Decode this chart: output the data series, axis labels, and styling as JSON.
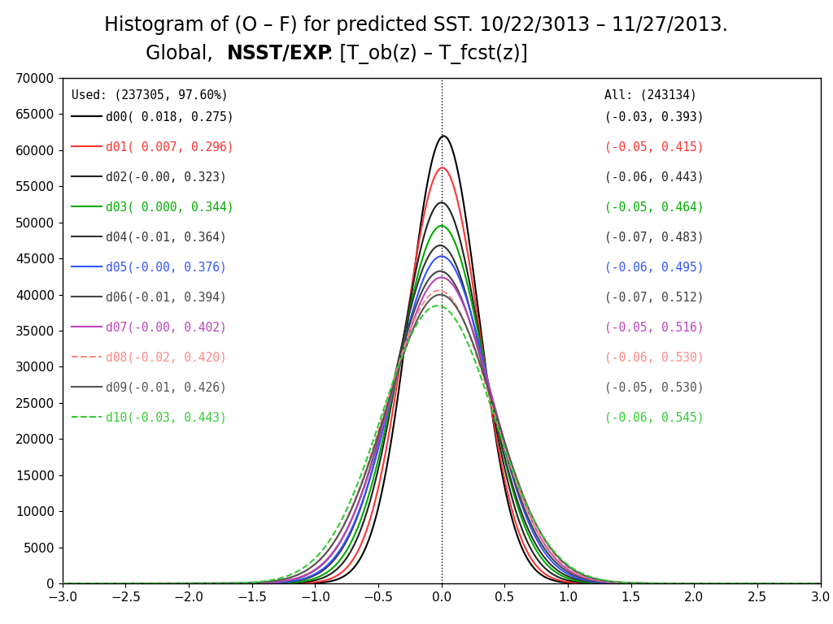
{
  "title_line1": "Histogram of (O – F) for predicted SST. 10/22/3013 – 11/27/2013.",
  "used_label": "Used: (237305, 97.60%)",
  "all_label": "All: (243134)",
  "xlim": [
    -3.0,
    3.0
  ],
  "ylim": [
    0,
    70000
  ],
  "yticks": [
    0,
    5000,
    10000,
    15000,
    20000,
    25000,
    30000,
    35000,
    40000,
    45000,
    50000,
    55000,
    60000,
    65000,
    70000
  ],
  "xticks": [
    -3,
    -2.5,
    -2,
    -1.5,
    -1,
    -0.5,
    0,
    0.5,
    1,
    1.5,
    2,
    2.5,
    3
  ],
  "curves": [
    {
      "name": "d00",
      "mean": 0.018,
      "std": 0.275,
      "color": "#000000",
      "linestyle": "-",
      "linewidth": 1.5,
      "all_mean": -0.03,
      "all_std": 0.393
    },
    {
      "name": "d01",
      "mean": 0.007,
      "std": 0.296,
      "color": "#ff3333",
      "linestyle": "-",
      "linewidth": 1.5,
      "all_mean": -0.05,
      "all_std": 0.415
    },
    {
      "name": "d02",
      "mean": -0.0,
      "std": 0.323,
      "color": "#222222",
      "linestyle": "-",
      "linewidth": 1.5,
      "all_mean": -0.06,
      "all_std": 0.443
    },
    {
      "name": "d03",
      "mean": 0.0,
      "std": 0.344,
      "color": "#00aa00",
      "linestyle": "-",
      "linewidth": 1.5,
      "all_mean": -0.05,
      "all_std": 0.464
    },
    {
      "name": "d04",
      "mean": -0.01,
      "std": 0.364,
      "color": "#333333",
      "linestyle": "-",
      "linewidth": 1.5,
      "all_mean": -0.07,
      "all_std": 0.483
    },
    {
      "name": "d05",
      "mean": -0.0,
      "std": 0.376,
      "color": "#3355ff",
      "linestyle": "-",
      "linewidth": 1.5,
      "all_mean": -0.06,
      "all_std": 0.495
    },
    {
      "name": "d06",
      "mean": -0.01,
      "std": 0.394,
      "color": "#444444",
      "linestyle": "-",
      "linewidth": 1.5,
      "all_mean": -0.07,
      "all_std": 0.512
    },
    {
      "name": "d07",
      "mean": -0.0,
      "std": 0.402,
      "color": "#bb44bb",
      "linestyle": "-",
      "linewidth": 1.5,
      "all_mean": -0.05,
      "all_std": 0.516
    },
    {
      "name": "d08",
      "mean": -0.02,
      "std": 0.42,
      "color": "#ff8888",
      "linestyle": "--",
      "linewidth": 1.5,
      "all_mean": -0.06,
      "all_std": 0.53
    },
    {
      "name": "d09",
      "mean": -0.01,
      "std": 0.426,
      "color": "#555555",
      "linestyle": "-",
      "linewidth": 1.5,
      "all_mean": -0.05,
      "all_std": 0.53
    },
    {
      "name": "d10",
      "mean": -0.03,
      "std": 0.443,
      "color": "#33cc33",
      "linestyle": "--",
      "linewidth": 1.5,
      "all_mean": -0.06,
      "all_std": 0.545
    }
  ],
  "n_used": 237305,
  "bin_width": 0.18,
  "bg_color": "#ffffff"
}
